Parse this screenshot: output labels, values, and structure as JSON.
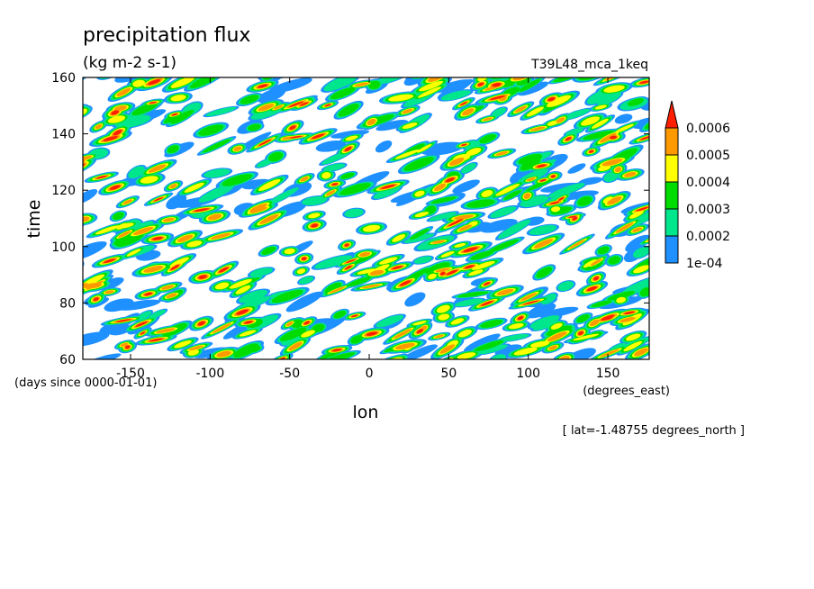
{
  "chart_data": {
    "type": "heatmap",
    "title": "precipitation flux",
    "units": "(kg m-2 s-1)",
    "dataset": "T39L48_mca_1keq",
    "xlabel": "lon",
    "xunits": "(degrees_east)",
    "ylabel": "time",
    "yunits": "(days since 0000-01-01)",
    "footnote": "[ lat=-1.48755 degrees_north ]",
    "xlim": [
      -180,
      176
    ],
    "ylim": [
      60,
      160
    ],
    "xticks": [
      -150,
      -100,
      -50,
      0,
      50,
      100,
      150
    ],
    "yticks": [
      60,
      80,
      100,
      120,
      140,
      160
    ],
    "levels": [
      0.0001,
      0.0002,
      0.0003,
      0.0004,
      0.0005,
      0.0006
    ],
    "level_labels": [
      "1e-04",
      "0.0002",
      "0.0003",
      "0.0004",
      "0.0005",
      "0.0006"
    ],
    "colors": [
      "#1e90ff",
      "#00e68c",
      "#00dc00",
      "#ffff00",
      "#ff9900",
      "#ff1f00"
    ],
    "fill_note": "eastward-propagating precipitation streaks (lon-time Hovmoller)"
  }
}
